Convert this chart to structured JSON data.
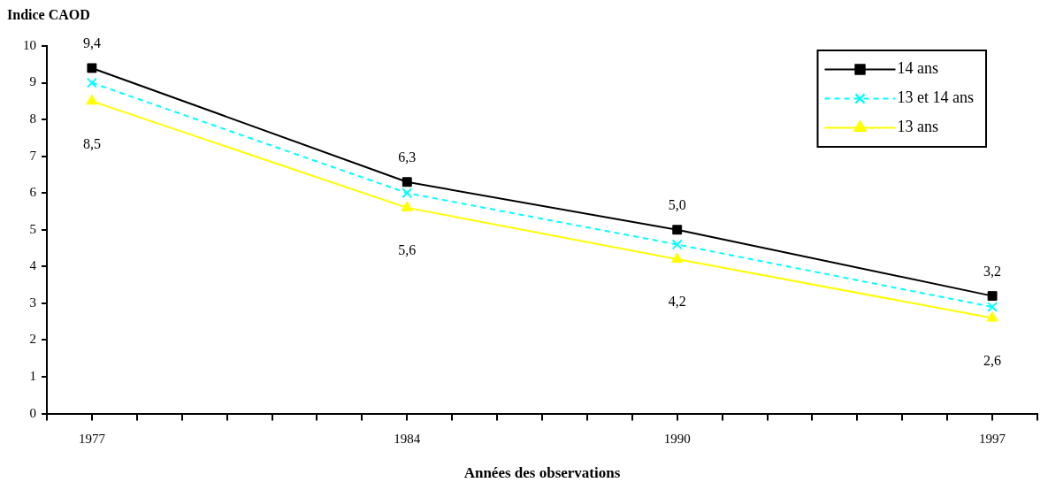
{
  "chart_data": {
    "type": "line",
    "ylabel": "Indice CAOD",
    "xlabel": "Années des observations",
    "x": [
      1977,
      1984,
      1990,
      1997
    ],
    "series": [
      {
        "name": "14 ans",
        "color": "#000000",
        "marker": "square",
        "line_style": "solid",
        "values": [
          9.4,
          6.3,
          5.0,
          3.2
        ],
        "value_labels": [
          "9,4",
          "6,3",
          "5,0",
          "3,2"
        ]
      },
      {
        "name": "13 et 14 ans",
        "color": "#00ffff",
        "marker": "cross",
        "line_style": "dashed",
        "values": [
          9.0,
          6.0,
          4.6,
          2.9
        ]
      },
      {
        "name": "13 ans",
        "color": "#ffff00",
        "marker": "triangle",
        "line_style": "solid",
        "values": [
          8.5,
          5.6,
          4.2,
          2.6
        ],
        "value_labels": [
          "8,5",
          "5,6",
          "4,2",
          "2,6"
        ]
      }
    ],
    "xlim": [
      1976,
      1998
    ],
    "xticks": [
      {
        "value": 1976,
        "label": null
      },
      1977,
      {
        "value": 1978,
        "label": null
      },
      {
        "value": 1979,
        "label": null
      },
      {
        "value": 1980,
        "label": null
      },
      {
        "value": 1981,
        "label": null
      },
      {
        "value": 1982,
        "label": null
      },
      {
        "value": 1983,
        "label": null
      },
      1984,
      {
        "value": 1985,
        "label": null
      },
      {
        "value": 1986,
        "label": null
      },
      {
        "value": 1987,
        "label": null
      },
      {
        "value": 1988,
        "label": null
      },
      {
        "value": 1989,
        "label": null
      },
      1990,
      {
        "value": 1991,
        "label": null
      },
      {
        "value": 1992,
        "label": null
      },
      {
        "value": 1993,
        "label": null
      },
      {
        "value": 1994,
        "label": null
      },
      {
        "value": 1995,
        "label": null
      },
      {
        "value": 1996,
        "label": null
      },
      1997,
      {
        "value": 1998,
        "label": null
      }
    ],
    "ylim": [
      0,
      10
    ],
    "yticks": [
      0,
      1,
      2,
      3,
      4,
      5,
      6,
      7,
      8,
      9,
      10
    ],
    "grid": false,
    "legend": "top right"
  }
}
